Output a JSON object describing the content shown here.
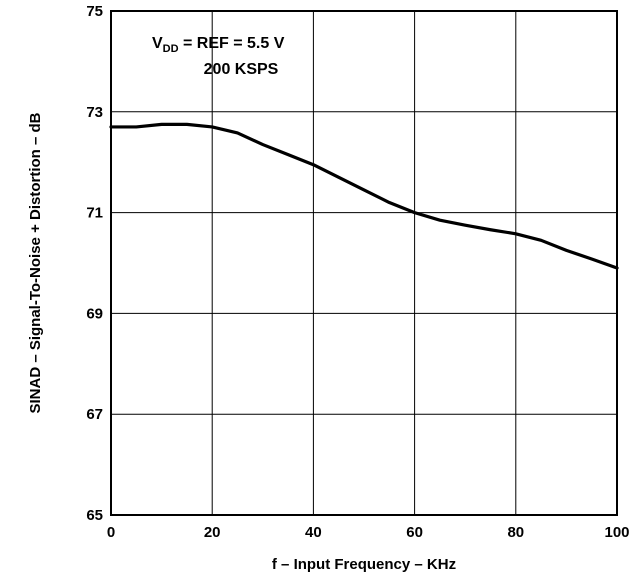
{
  "chart_data": {
    "type": "line",
    "title": "",
    "xlabel": "f – Input Frequency – KHz",
    "ylabel": "SINAD – Signal-To-Noise + Distortion – dB",
    "xlim": [
      0,
      100
    ],
    "ylim": [
      65,
      75
    ],
    "xticks": [
      "0",
      "20",
      "40",
      "60",
      "80",
      "100"
    ],
    "yticks": [
      "65",
      "67",
      "69",
      "71",
      "73",
      "75"
    ],
    "grid": true,
    "annotation": {
      "line1_prefix": "V",
      "line1_sub": "DD",
      "line1_suffix": " = REF = 5.5 V",
      "line2": "200 KSPS"
    },
    "series": [
      {
        "x": [
          0,
          5,
          10,
          15,
          20,
          25,
          30,
          35,
          40,
          45,
          50,
          55,
          60,
          65,
          70,
          75,
          80,
          85,
          90,
          95,
          100
        ],
        "y": [
          72.7,
          72.7,
          72.75,
          72.75,
          72.7,
          72.58,
          72.35,
          72.15,
          71.95,
          71.7,
          71.45,
          71.2,
          71.0,
          70.85,
          70.75,
          70.66,
          70.58,
          70.45,
          70.25,
          70.08,
          69.9
        ]
      }
    ]
  }
}
